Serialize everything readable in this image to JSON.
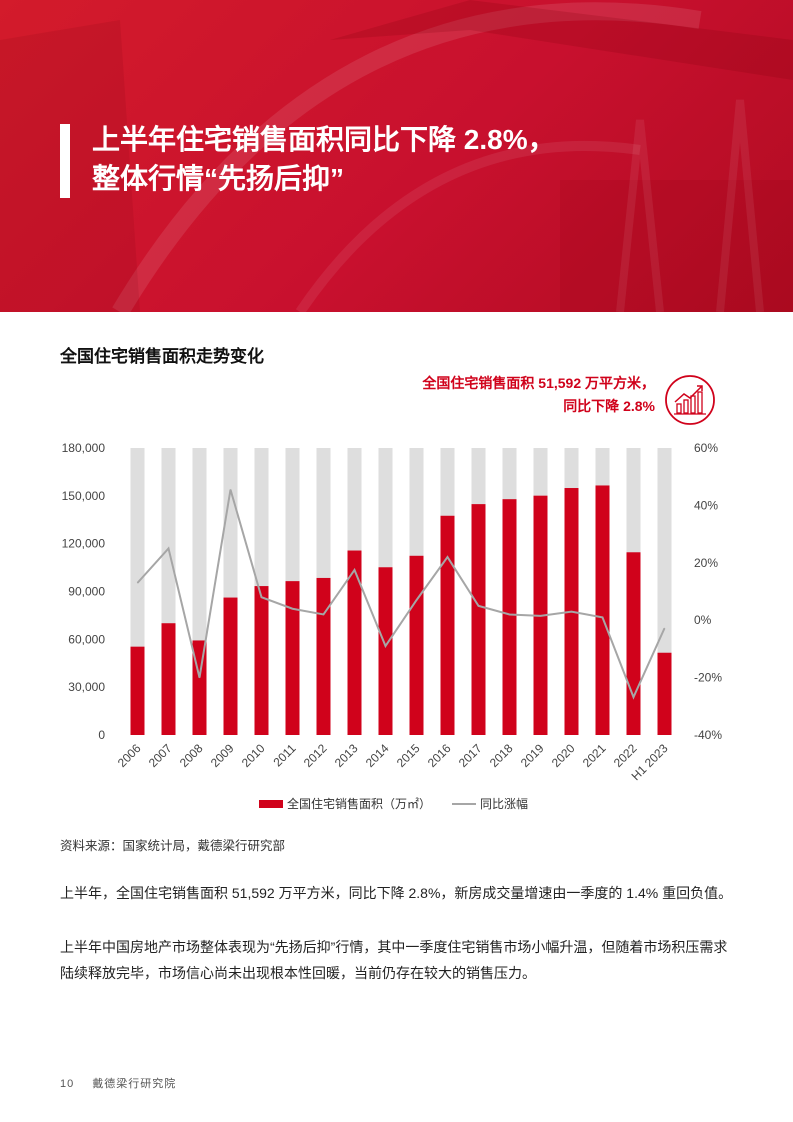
{
  "header": {
    "title_line1": "上半年住宅销售面积同比下降 2.8%，",
    "title_line2": "整体行情“先扬后抑”"
  },
  "chart_section": {
    "title": "全国住宅销售面积走势变化",
    "callout_line1": "全国住宅销售面积 51,592 万平方米，",
    "callout_line2": "同比下降 2.8%",
    "callout_icon": "growth-chart-icon",
    "accent_color": "#d0021b"
  },
  "chart_data": {
    "type": "bar",
    "categories": [
      "2006",
      "2007",
      "2008",
      "2009",
      "2010",
      "2011",
      "2012",
      "2013",
      "2014",
      "2015",
      "2016",
      "2017",
      "2018",
      "2019",
      "2020",
      "2021",
      "2022",
      "H1 2023"
    ],
    "series": [
      {
        "name": "全国住宅销售面积（万㎡）",
        "type": "bar",
        "axis": "left",
        "color": "#d0021b",
        "values": [
          55400,
          70100,
          59300,
          86200,
          93400,
          96500,
          98500,
          115700,
          105200,
          112400,
          137500,
          144800,
          147900,
          150100,
          154900,
          156500,
          114600,
          51592
        ]
      },
      {
        "name": "同比涨幅",
        "type": "line",
        "axis": "right",
        "color": "#a6a6a6",
        "values": [
          13,
          25,
          -20,
          45.5,
          8,
          4,
          2,
          17.5,
          -9,
          7,
          22,
          5,
          2,
          1.5,
          3,
          1,
          -26.8,
          -2.8
        ]
      }
    ],
    "background_bar_color": "#dedede",
    "left_axis": {
      "ticks": [
        "180,000",
        "150,000",
        "120,000",
        "90,000",
        "60,000",
        "30,000",
        "0"
      ],
      "ylim": [
        0,
        180000
      ]
    },
    "right_axis": {
      "ticks": [
        "60%",
        "40%",
        "20%",
        "0%",
        "-20%",
        "-40%"
      ],
      "ylim": [
        -40,
        60
      ]
    },
    "legend_position": "bottom"
  },
  "source_text": "资料来源：国家统计局，戴德梁行研究部",
  "paragraph1": "上半年，全国住宅销售面积 51,592 万平方米，同比下降 2.8%，新房成交量增速由一季度的 1.4% 重回负值。",
  "paragraph2": "上半年中国房地产市场整体表现为“先扬后抑”行情，其中一季度住宅销售市场小幅升温，但随着市场积压需求陆续释放完毕，市场信心尚未出现根本性回暖，当前仍存在较大的销售压力。",
  "footer": {
    "page_number": "10",
    "org": "戴德梁行研究院"
  }
}
